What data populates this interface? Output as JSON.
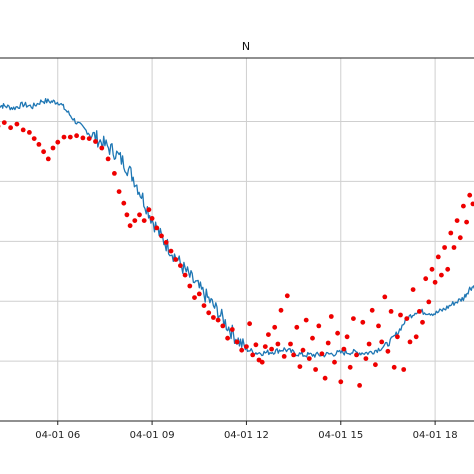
{
  "chart_data": {
    "type": "line",
    "title": "N",
    "xlabel": "",
    "ylabel": "",
    "x_tick_labels": [
      "04-01 06",
      "04-01 09",
      "04-01 12",
      "04-01 15",
      "04-01 18"
    ],
    "x_ticks_hours": [
      6,
      9,
      12,
      15,
      18
    ],
    "xlim_hours": [
      4.1,
      19.3
    ],
    "y_gridlines": 6,
    "grid": true,
    "series": [
      {
        "kind": "line",
        "color": "#1f77b4",
        "x_hours": [
          4.1,
          4.3,
          4.6,
          4.9,
          5.2,
          5.5,
          5.8,
          6.05,
          6.3,
          6.6,
          6.9,
          7.2,
          7.5,
          7.8,
          8.1,
          8.4,
          8.7,
          9.0,
          9.3,
          9.6,
          9.9,
          10.2,
          10.5,
          10.8,
          11.1,
          11.4,
          11.7,
          12.0,
          12.3,
          12.6,
          12.9,
          13.2,
          13.5,
          13.8,
          14.1,
          14.4,
          14.7,
          15.0,
          15.3,
          15.6,
          15.9,
          16.2,
          16.5,
          16.8,
          17.1,
          17.4,
          17.7,
          18.0,
          18.3,
          18.6,
          18.9,
          19.1,
          19.3
        ],
        "y": [
          0.87,
          0.868,
          0.862,
          0.872,
          0.866,
          0.882,
          0.88,
          0.878,
          0.852,
          0.822,
          0.8,
          0.782,
          0.76,
          0.742,
          0.712,
          0.672,
          0.615,
          0.555,
          0.505,
          0.47,
          0.432,
          0.398,
          0.365,
          0.335,
          0.3,
          0.262,
          0.225,
          0.198,
          0.188,
          0.188,
          0.192,
          0.198,
          0.188,
          0.182,
          0.182,
          0.182,
          0.185,
          0.188,
          0.19,
          0.188,
          0.188,
          0.198,
          0.212,
          0.242,
          0.282,
          0.302,
          0.3,
          0.296,
          0.308,
          0.325,
          0.338,
          0.365,
          0.375
        ]
      },
      {
        "kind": "scatter",
        "color": "#ee0000",
        "x_hours": [
          4.1,
          4.3,
          4.5,
          4.7,
          4.9,
          5.1,
          5.25,
          5.4,
          5.55,
          5.7,
          5.85,
          6.0,
          6.2,
          6.4,
          6.6,
          6.8,
          7.0,
          7.2,
          7.4,
          7.6,
          7.8,
          7.95,
          8.1,
          8.2,
          8.3,
          8.45,
          8.6,
          8.75,
          8.9,
          9.0,
          9.15,
          9.3,
          9.45,
          9.6,
          9.75,
          9.9,
          10.05,
          10.2,
          10.35,
          10.5,
          10.65,
          10.8,
          10.95,
          11.1,
          11.25,
          11.4,
          11.55,
          11.7,
          11.85,
          12.0,
          12.1,
          12.2,
          12.3,
          12.4,
          12.5,
          12.6,
          12.7,
          12.8,
          12.9,
          13.0,
          13.1,
          13.2,
          13.3,
          13.4,
          13.5,
          13.6,
          13.7,
          13.8,
          13.9,
          14.0,
          14.1,
          14.2,
          14.3,
          14.4,
          14.5,
          14.6,
          14.7,
          14.8,
          14.9,
          15.0,
          15.1,
          15.2,
          15.3,
          15.4,
          15.5,
          15.6,
          15.7,
          15.8,
          15.9,
          16.0,
          16.1,
          16.2,
          16.3,
          16.4,
          16.5,
          16.6,
          16.7,
          16.8,
          16.9,
          17.0,
          17.1,
          17.2,
          17.3,
          17.4,
          17.5,
          17.6,
          17.7,
          17.8,
          17.9,
          18.0,
          18.1,
          18.2,
          18.3,
          18.4,
          18.5,
          18.6,
          18.7,
          18.8,
          18.9,
          19.0,
          19.1,
          19.2
        ],
        "y": [
          0.812,
          0.822,
          0.808,
          0.818,
          0.802,
          0.795,
          0.778,
          0.762,
          0.742,
          0.722,
          0.752,
          0.768,
          0.782,
          0.782,
          0.786,
          0.78,
          0.778,
          0.77,
          0.752,
          0.722,
          0.682,
          0.632,
          0.6,
          0.568,
          0.538,
          0.552,
          0.568,
          0.552,
          0.582,
          0.558,
          0.532,
          0.51,
          0.492,
          0.468,
          0.445,
          0.428,
          0.402,
          0.372,
          0.34,
          0.35,
          0.318,
          0.298,
          0.285,
          0.278,
          0.262,
          0.228,
          0.252,
          0.218,
          0.195,
          0.205,
          0.268,
          0.182,
          0.21,
          0.168,
          0.162,
          0.205,
          0.238,
          0.198,
          0.258,
          0.212,
          0.305,
          0.178,
          0.345,
          0.212,
          0.182,
          0.258,
          0.15,
          0.195,
          0.278,
          0.172,
          0.228,
          0.142,
          0.262,
          0.185,
          0.118,
          0.215,
          0.288,
          0.162,
          0.242,
          0.108,
          0.198,
          0.232,
          0.148,
          0.282,
          0.182,
          0.098,
          0.272,
          0.172,
          0.212,
          0.305,
          0.155,
          0.262,
          0.218,
          0.342,
          0.192,
          0.302,
          0.148,
          0.232,
          0.292,
          0.142,
          0.282,
          0.218,
          0.362,
          0.232,
          0.302,
          0.272,
          0.392,
          0.328,
          0.418,
          0.382,
          0.452,
          0.402,
          0.478,
          0.418,
          0.518,
          0.478,
          0.552,
          0.505,
          0.592,
          0.548,
          0.622,
          0.598
        ]
      }
    ]
  }
}
